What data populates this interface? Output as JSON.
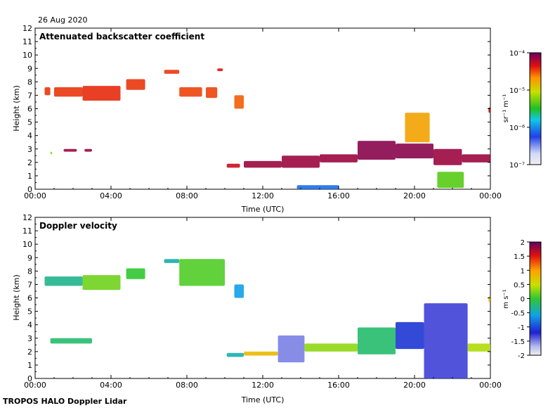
{
  "date_label": "26 Aug 2020",
  "footer": "TROPOS HALO Doppler Lidar",
  "chart_data": [
    {
      "type": "heatmap",
      "title": "Attenuated backscatter coefficient",
      "xlabel": "Time (UTC)",
      "ylabel": "Height (km)",
      "xlim": [
        0,
        24
      ],
      "ylim": [
        0,
        12
      ],
      "x_tick_labels": [
        "00:00",
        "04:00",
        "08:00",
        "12:00",
        "16:00",
        "20:00",
        "00:00"
      ],
      "y_tick_labels": [
        "0",
        "1",
        "2",
        "3",
        "4",
        "5",
        "6",
        "7",
        "8",
        "9",
        "10",
        "11",
        "12"
      ],
      "colorbar": {
        "scale": "log",
        "unit_label": "sr⁻¹ m⁻¹",
        "range": [
          1e-07,
          0.0001
        ],
        "tick_labels": [
          "10⁻⁴",
          "10⁻⁵",
          "10⁻⁶",
          "10⁻⁷"
        ]
      },
      "features": [
        {
          "hours": [
            0.5,
            0.8
          ],
          "heights": [
            7.0,
            7.6
          ],
          "level": 0.85
        },
        {
          "hours": [
            1.0,
            2.5
          ],
          "heights": [
            6.9,
            7.6
          ],
          "level": 0.85
        },
        {
          "hours": [
            2.5,
            4.5
          ],
          "heights": [
            6.6,
            7.7
          ],
          "level": 0.86
        },
        {
          "hours": [
            4.8,
            5.8
          ],
          "heights": [
            7.4,
            8.2
          ],
          "level": 0.85
        },
        {
          "hours": [
            6.8,
            7.6
          ],
          "heights": [
            8.6,
            8.9
          ],
          "level": 0.85
        },
        {
          "hours": [
            7.6,
            8.8
          ],
          "heights": [
            6.9,
            7.6
          ],
          "level": 0.84
        },
        {
          "hours": [
            9.0,
            9.6
          ],
          "heights": [
            6.8,
            7.6
          ],
          "level": 0.84
        },
        {
          "hours": [
            9.6,
            9.9
          ],
          "heights": [
            8.8,
            9.0
          ],
          "level": 0.88
        },
        {
          "hours": [
            10.5,
            11.0
          ],
          "heights": [
            6.0,
            7.0
          ],
          "level": 0.82
        },
        {
          "hours": [
            0.8,
            0.9
          ],
          "heights": [
            2.6,
            2.8
          ],
          "level": 0.6
        },
        {
          "hours": [
            1.5,
            2.2
          ],
          "heights": [
            2.8,
            3.0
          ],
          "level": 0.95
        },
        {
          "hours": [
            2.6,
            3.0
          ],
          "heights": [
            2.8,
            3.0
          ],
          "level": 0.95
        },
        {
          "hours": [
            10.1,
            10.8
          ],
          "heights": [
            1.6,
            1.9
          ],
          "level": 0.9
        },
        {
          "hours": [
            11.0,
            13.0
          ],
          "heights": [
            1.6,
            2.1
          ],
          "level": 0.95
        },
        {
          "hours": [
            13.0,
            15.0
          ],
          "heights": [
            1.6,
            2.5
          ],
          "level": 0.95
        },
        {
          "hours": [
            15.0,
            17.0
          ],
          "heights": [
            2.0,
            2.6
          ],
          "level": 0.95
        },
        {
          "hours": [
            17.0,
            19.0
          ],
          "heights": [
            2.2,
            3.6
          ],
          "level": 0.97
        },
        {
          "hours": [
            19.0,
            21.0
          ],
          "heights": [
            2.3,
            3.4
          ],
          "level": 0.97
        },
        {
          "hours": [
            21.0,
            22.5
          ],
          "heights": [
            1.8,
            3.0
          ],
          "level": 0.95
        },
        {
          "hours": [
            22.5,
            24.0
          ],
          "heights": [
            2.0,
            2.6
          ],
          "level": 0.95
        },
        {
          "hours": [
            19.5,
            20.8
          ],
          "heights": [
            3.5,
            5.7
          ],
          "level": 0.75
        },
        {
          "hours": [
            21.2,
            22.6
          ],
          "heights": [
            0.1,
            1.3
          ],
          "level": 0.55
        },
        {
          "hours": [
            13.8,
            16.0
          ],
          "heights": [
            0.0,
            0.3
          ],
          "level": 0.3
        },
        {
          "hours": [
            23.9,
            24.0
          ],
          "heights": [
            5.7,
            6.1
          ],
          "level": 0.9
        }
      ]
    },
    {
      "type": "heatmap",
      "title": "Doppler velocity",
      "xlabel": "Time (UTC)",
      "ylabel": "Height (km)",
      "xlim": [
        0,
        24
      ],
      "ylim": [
        0,
        12
      ],
      "x_tick_labels": [
        "00:00",
        "04:00",
        "08:00",
        "12:00",
        "16:00",
        "20:00",
        "00:00"
      ],
      "y_tick_labels": [
        "0",
        "1",
        "2",
        "3",
        "4",
        "5",
        "6",
        "7",
        "8",
        "9",
        "10",
        "11",
        "12"
      ],
      "colorbar": {
        "scale": "linear",
        "unit_label": "m s⁻¹",
        "range": [
          -2,
          2
        ],
        "tick_labels": [
          "2",
          "1.5",
          "1",
          "0.5",
          "0",
          "-0.5",
          "-1",
          "-1.5",
          "-2"
        ]
      },
      "features": [
        {
          "hours": [
            0.5,
            2.5
          ],
          "heights": [
            6.9,
            7.6
          ],
          "value": -0.3
        },
        {
          "hours": [
            2.5,
            4.5
          ],
          "heights": [
            6.6,
            7.7
          ],
          "value": 0.2
        },
        {
          "hours": [
            4.8,
            5.8
          ],
          "heights": [
            7.4,
            8.2
          ],
          "value": 0.0
        },
        {
          "hours": [
            6.8,
            7.6
          ],
          "heights": [
            8.6,
            8.9
          ],
          "value": -0.4
        },
        {
          "hours": [
            7.6,
            10.0
          ],
          "heights": [
            6.9,
            8.9
          ],
          "value": 0.1
        },
        {
          "hours": [
            10.5,
            11.0
          ],
          "heights": [
            6.0,
            7.0
          ],
          "value": -0.6
        },
        {
          "hours": [
            0.8,
            3.0
          ],
          "heights": [
            2.6,
            3.0
          ],
          "value": -0.2
        },
        {
          "hours": [
            10.1,
            11.0
          ],
          "heights": [
            1.6,
            1.9
          ],
          "value": -0.4
        },
        {
          "hours": [
            11.0,
            12.8
          ],
          "heights": [
            1.7,
            2.0
          ],
          "value": 0.8
        },
        {
          "hours": [
            12.8,
            14.2
          ],
          "heights": [
            1.2,
            3.2
          ],
          "value": -1.5
        },
        {
          "hours": [
            14.2,
            17.0
          ],
          "heights": [
            2.0,
            2.6
          ],
          "value": 0.3
        },
        {
          "hours": [
            17.0,
            19.0
          ],
          "heights": [
            1.8,
            3.8
          ],
          "value": -0.2
        },
        {
          "hours": [
            19.0,
            20.5
          ],
          "heights": [
            2.2,
            4.2
          ],
          "value": -1.1
        },
        {
          "hours": [
            20.5,
            22.8
          ],
          "heights": [
            0.0,
            5.6
          ],
          "value": -1.3
        },
        {
          "hours": [
            22.8,
            24.0
          ],
          "heights": [
            2.0,
            2.6
          ],
          "value": 0.4
        },
        {
          "hours": [
            23.9,
            24.0
          ],
          "heights": [
            5.7,
            6.1
          ],
          "value": 0.8
        }
      ]
    }
  ]
}
